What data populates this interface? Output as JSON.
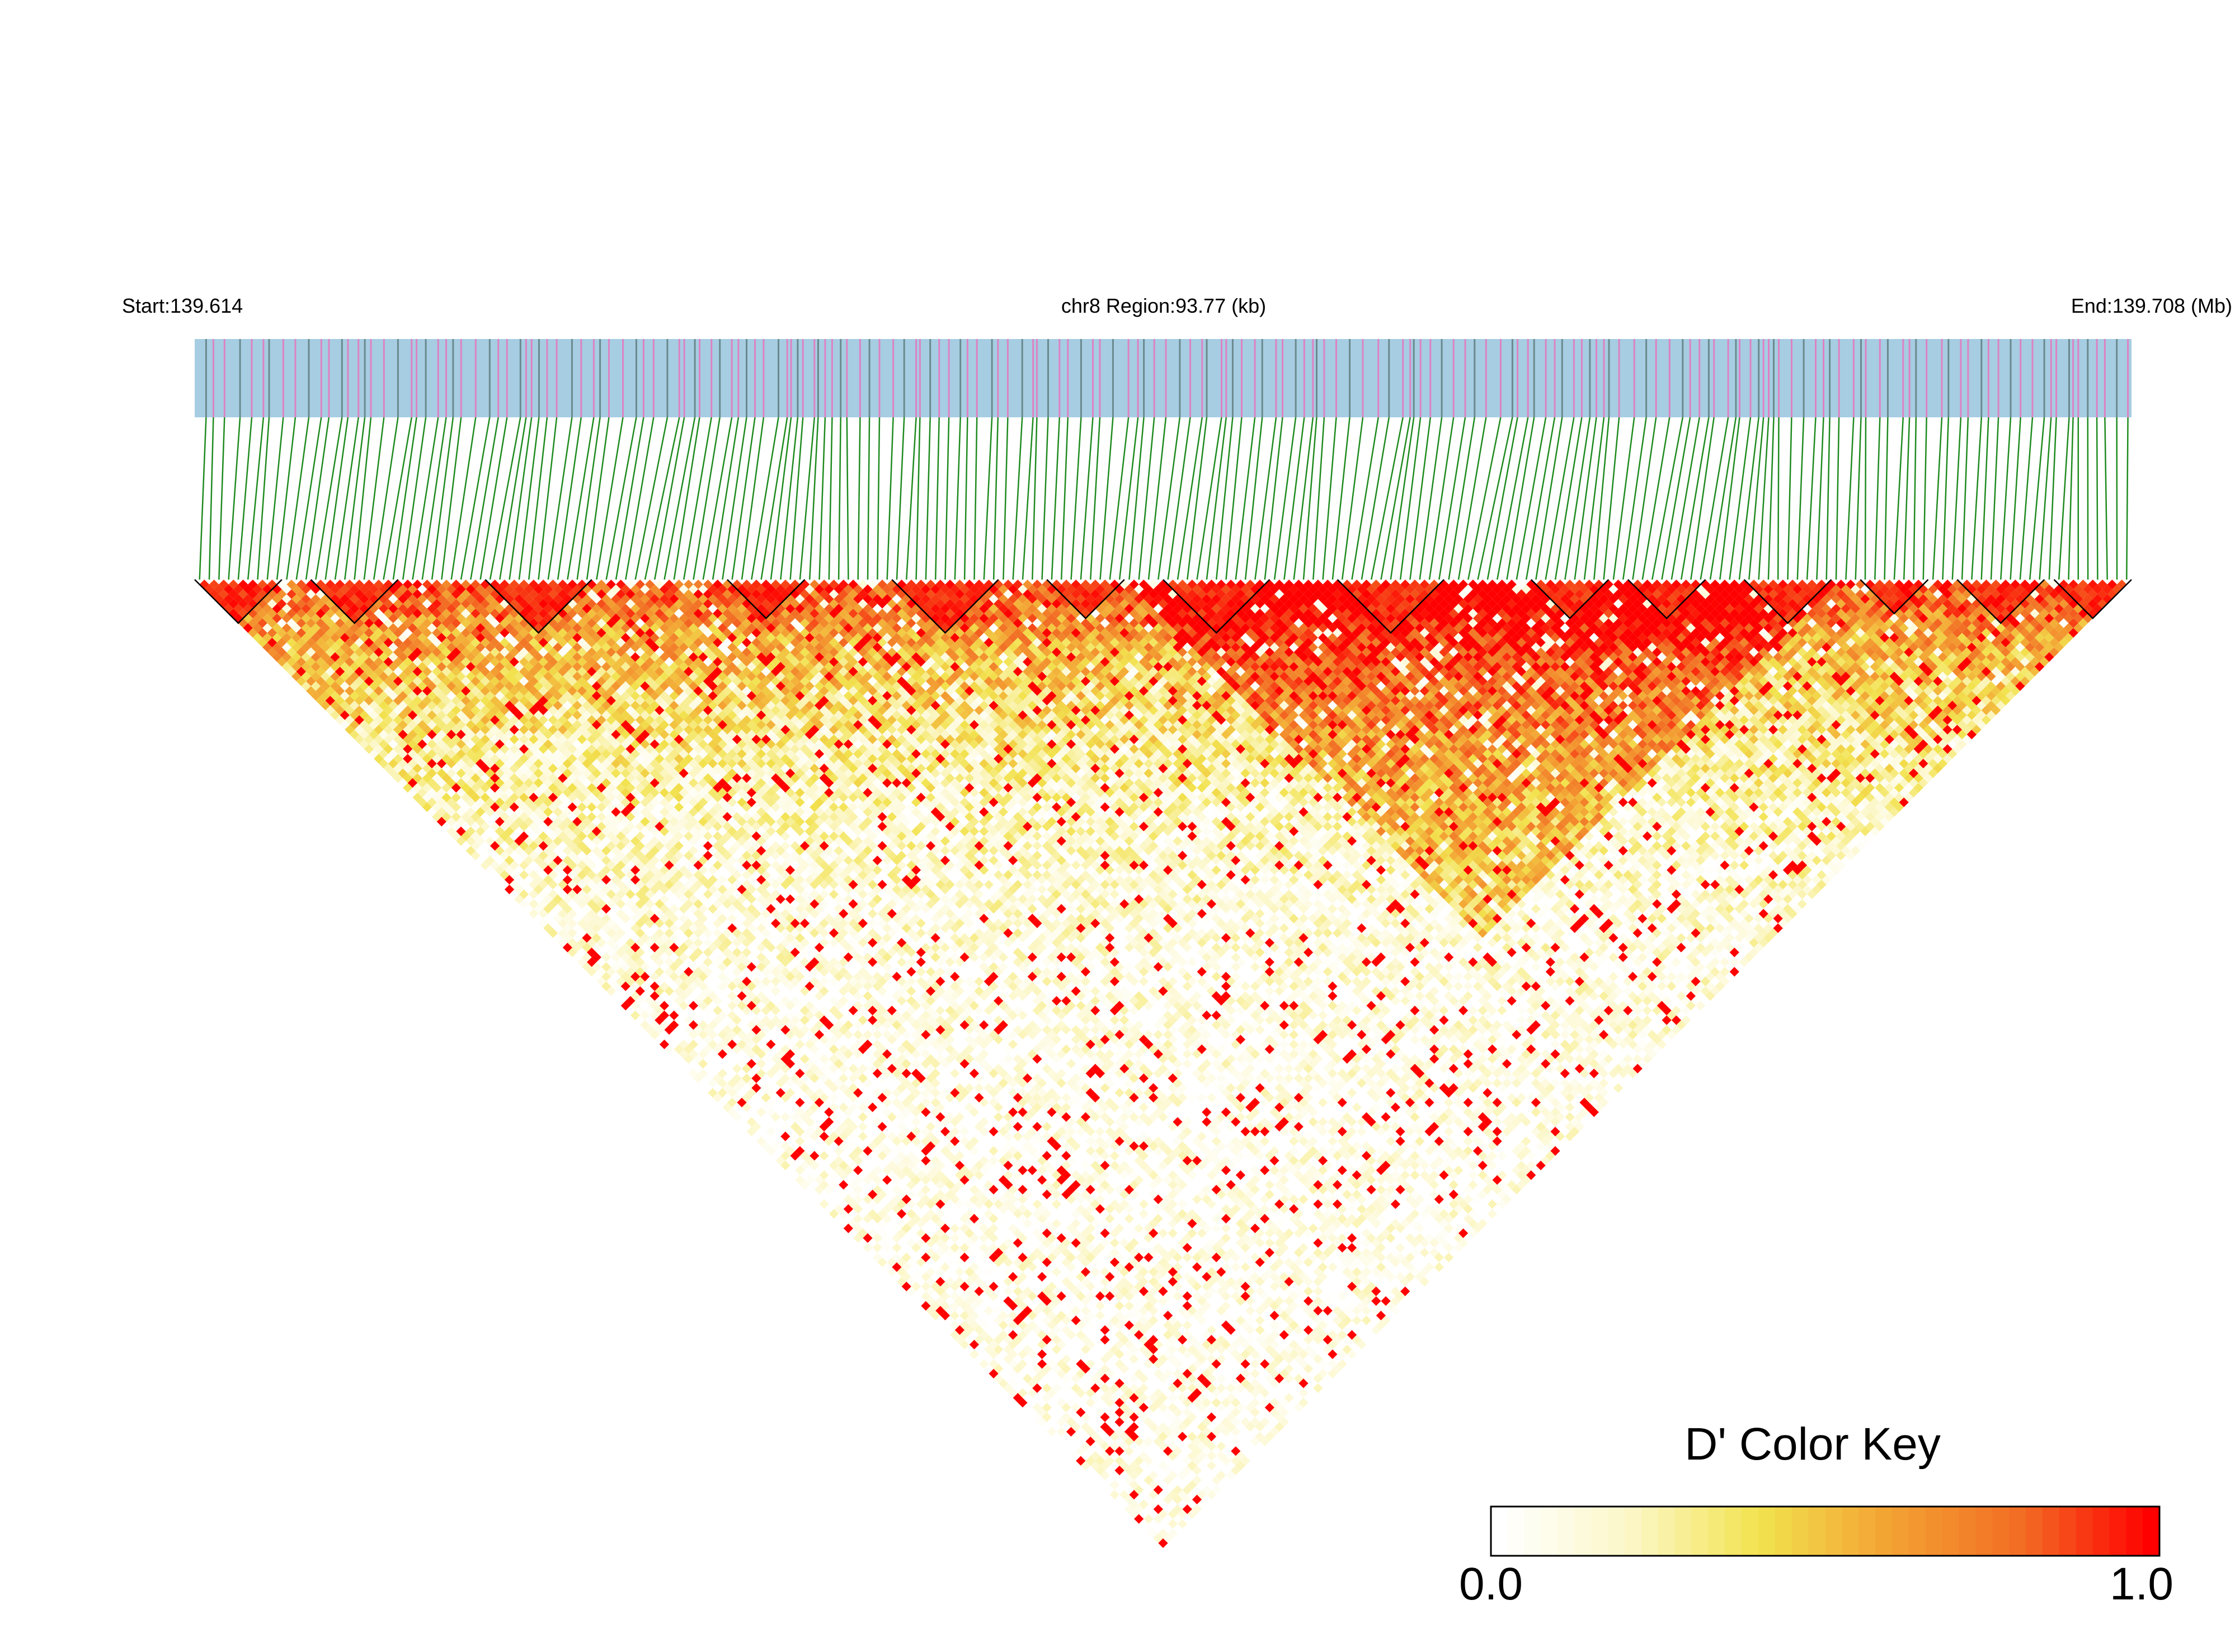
{
  "header": {
    "start_label": "Start:139.614",
    "region_label": "chr8 Region:93.77 (kb)",
    "end_label": "End:139.708 (Mb)"
  },
  "track": {
    "background_color": "#a6cde2",
    "snp_colors": [
      "#dd82c4",
      "#6b8a8e"
    ],
    "connector_color": "#1f8b1f"
  },
  "heatmap": {
    "snp_count": 200,
    "color_scale": [
      "#ffffff",
      "#fcf7c8",
      "#f2e24e",
      "#f3a233",
      "#f26d24",
      "#ff0000"
    ],
    "block_outline_color": "#000000"
  },
  "color_key": {
    "title": "D' Color Key",
    "min_label": "0.0",
    "max_label": "1.0",
    "colors": [
      "#ffffff",
      "#fcf7c8",
      "#f2e24e",
      "#f3a233",
      "#f26d24",
      "#ff0000"
    ]
  }
}
